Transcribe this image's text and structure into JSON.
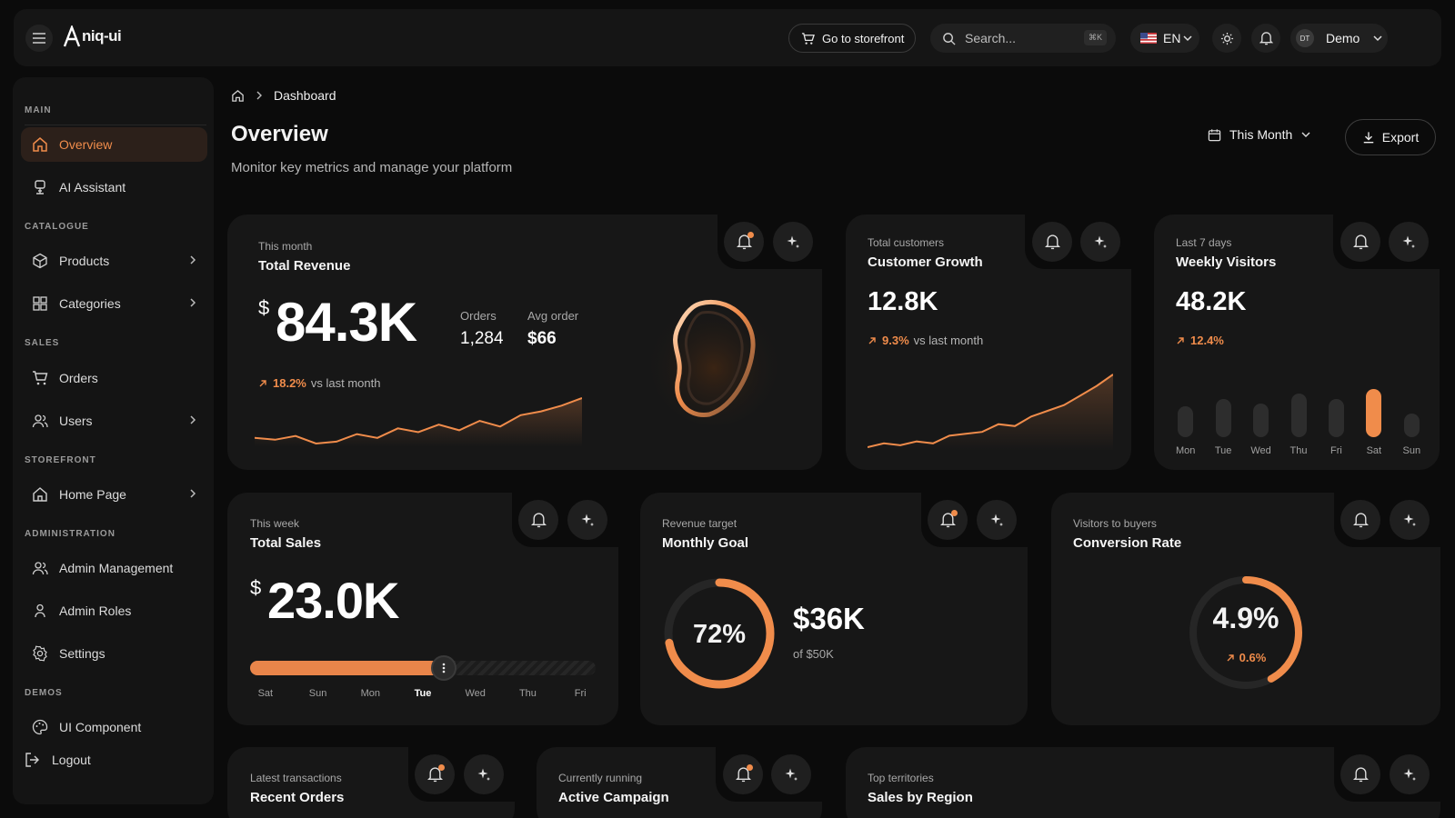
{
  "brand": {
    "name": "niq-ui"
  },
  "topbar": {
    "storefront_label": "Go to storefront",
    "search_placeholder": "Search...",
    "search_shortcut": "⌘K",
    "language": "EN",
    "avatar_initials": "DT",
    "user_name": "Demo"
  },
  "sidebar": {
    "sections": {
      "main": "MAIN",
      "catalogue": "CATALOGUE",
      "sales": "SALES",
      "storefront": "STOREFRONT",
      "administration": "ADMINISTRATION",
      "demos": "DEMOS"
    },
    "items": {
      "overview": "Overview",
      "ai_assistant": "AI Assistant",
      "products": "Products",
      "categories": "Categories",
      "orders": "Orders",
      "users": "Users",
      "home_page": "Home Page",
      "admin_management": "Admin Management",
      "admin_roles": "Admin Roles",
      "settings": "Settings",
      "ui_component": "UI Component",
      "logout": "Logout"
    }
  },
  "breadcrumb": {
    "current": "Dashboard"
  },
  "page": {
    "title": "Overview",
    "subtitle": "Monitor key metrics and manage your platform",
    "period": "This Month",
    "export_label": "Export"
  },
  "cards": {
    "revenue": {
      "caption": "This month",
      "title": "Total Revenue",
      "currency": "$",
      "value": "84.3K",
      "orders_label": "Orders",
      "orders_value": "1,284",
      "avg_label": "Avg order",
      "avg_value": "$66",
      "change": "18.2%",
      "change_suffix": "vs last month",
      "trend": [
        12,
        11,
        13,
        9,
        10,
        14,
        12,
        17,
        15,
        19,
        16,
        21,
        18,
        24,
        26,
        29,
        33
      ]
    },
    "customers": {
      "caption": "Total customers",
      "title": "Customer Growth",
      "value": "12.8K",
      "change": "9.3%",
      "change_suffix": "vs last month",
      "trend": [
        6,
        8,
        7,
        9,
        8,
        12,
        13,
        14,
        18,
        17,
        22,
        25,
        28,
        33,
        38,
        44
      ]
    },
    "visitors": {
      "caption": "Last 7 days",
      "title": "Weekly Visitors",
      "value": "48.2K",
      "change": "12.4%",
      "days": [
        "Mon",
        "Tue",
        "Wed",
        "Thu",
        "Fri",
        "Sat",
        "Sun"
      ],
      "levels": [
        0.42,
        0.52,
        0.46,
        0.6,
        0.52,
        0.66,
        0.32
      ],
      "highlight": "Sat"
    },
    "sales": {
      "caption": "This week",
      "title": "Total Sales",
      "currency": "$",
      "value": "23.0K",
      "progress": 0.56,
      "days": [
        "Sat",
        "Sun",
        "Mon",
        "Tue",
        "Wed",
        "Thu",
        "Fri"
      ],
      "current_day": "Tue"
    },
    "goal": {
      "caption": "Revenue target",
      "title": "Monthly Goal",
      "percent_label": "72%",
      "percent": 0.72,
      "amount": "$36K",
      "target": "of $50K"
    },
    "conversion": {
      "caption": "Visitors to buyers",
      "title": "Conversion Rate",
      "value": "4.9%",
      "change": "0.6%",
      "fill": 0.42
    },
    "recent_orders": {
      "caption": "Latest transactions",
      "title": "Recent Orders"
    },
    "campaign": {
      "caption": "Currently running",
      "title": "Active Campaign"
    },
    "regions": {
      "caption": "Top territories",
      "title": "Sales by Region"
    }
  },
  "colors": {
    "accent": "#f08c4b",
    "background": "#0b0b0b",
    "card": "#171717"
  },
  "icons": [
    "menu-icon",
    "logo-icon",
    "cart-icon",
    "search-icon",
    "flag-icon",
    "sun-icon",
    "bell-icon",
    "home-icon",
    "ai-icon",
    "box-icon",
    "grid-icon",
    "orders-cart-icon",
    "users-icon",
    "page-home-icon",
    "admin-icon",
    "role-icon",
    "settings-icon",
    "palette-icon",
    "logout-icon",
    "calendar-icon",
    "download-icon",
    "sparkle-icon",
    "chevron-right-icon",
    "chevron-down-icon"
  ]
}
